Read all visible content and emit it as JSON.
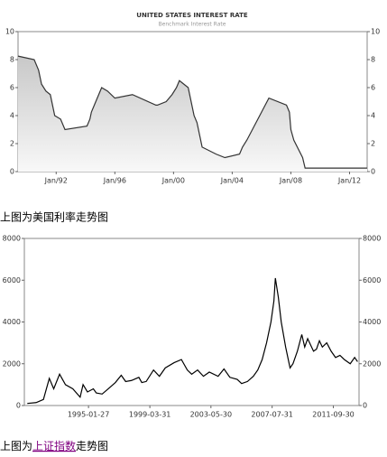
{
  "chart_data": [
    {
      "type": "area",
      "title": "UNITED STATES INTEREST RATE",
      "subtitle": "Benchmark Interest Rate",
      "color": "#333333",
      "x": [
        1989.4,
        1990.5,
        1990.8,
        1991.0,
        1991.3,
        1991.6,
        1991.9,
        1992.3,
        1992.6,
        1994.1,
        1994.3,
        1994.4,
        1994.6,
        1994.9,
        1995.1,
        1995.5,
        1996.0,
        1997.2,
        1998.8,
        1998.9,
        1999.5,
        1999.7,
        1999.9,
        2000.2,
        2000.4,
        2001.0,
        2001.2,
        2001.4,
        2001.6,
        2001.8,
        2001.95,
        2002.9,
        2003.5,
        2004.5,
        2004.7,
        2005.0,
        2005.5,
        2006.0,
        2006.5,
        2007.7,
        2007.9,
        2008.0,
        2008.2,
        2008.8,
        2008.97,
        2013.2
      ],
      "values": [
        8.25,
        8.0,
        7.25,
        6.25,
        5.75,
        5.5,
        4.0,
        3.75,
        3.0,
        3.25,
        3.75,
        4.25,
        4.75,
        5.5,
        6.0,
        5.75,
        5.25,
        5.5,
        4.75,
        4.75,
        5.0,
        5.25,
        5.5,
        6.0,
        6.5,
        6.0,
        5.0,
        4.0,
        3.5,
        2.5,
        1.75,
        1.25,
        1.0,
        1.25,
        1.75,
        2.25,
        3.25,
        4.25,
        5.25,
        4.75,
        4.25,
        3.0,
        2.25,
        1.0,
        0.25,
        0.25
      ],
      "xlim": [
        1989.4,
        2013.2
      ],
      "xticks": [
        {
          "value": 1992,
          "label": "Jan/92"
        },
        {
          "value": 1996,
          "label": "Jan/96"
        },
        {
          "value": 2000,
          "label": "Jan/00"
        },
        {
          "value": 2004,
          "label": "Jan/04"
        },
        {
          "value": 2008,
          "label": "Jan/08"
        },
        {
          "value": 2012,
          "label": "Jan/12"
        }
      ],
      "ylim": [
        0,
        10
      ],
      "yticks": [
        0,
        2,
        4,
        6,
        8,
        10
      ]
    },
    {
      "type": "line",
      "color": "#000000",
      "x": [
        1990.9,
        1991.5,
        1992.0,
        1992.4,
        1992.7,
        1993.1,
        1993.5,
        1994.0,
        1994.5,
        1994.7,
        1995.0,
        1995.4,
        1995.6,
        1996.0,
        1996.5,
        1996.9,
        1997.3,
        1997.6,
        1998.0,
        1998.5,
        1998.7,
        1999.0,
        1999.5,
        1999.9,
        2000.3,
        2000.9,
        2001.4,
        2001.8,
        2002.1,
        2002.5,
        2002.9,
        2003.3,
        2003.9,
        2004.3,
        2004.7,
        2005.2,
        2005.5,
        2005.9,
        2006.3,
        2006.6,
        2006.9,
        2007.2,
        2007.5,
        2007.7,
        2007.8,
        2008.0,
        2008.2,
        2008.5,
        2008.8,
        2009.0,
        2009.3,
        2009.6,
        2009.8,
        2010.0,
        2010.4,
        2010.6,
        2010.8,
        2011.0,
        2011.3,
        2011.6,
        2011.9,
        2012.2,
        2012.5,
        2012.9,
        2013.2,
        2013.4
      ],
      "values": [
        100,
        140,
        290,
        1300,
        800,
        1500,
        1000,
        800,
        400,
        1000,
        650,
        800,
        600,
        550,
        850,
        1100,
        1450,
        1150,
        1200,
        1350,
        1100,
        1150,
        1700,
        1400,
        1800,
        2050,
        2200,
        1700,
        1500,
        1700,
        1400,
        1600,
        1400,
        1750,
        1350,
        1250,
        1050,
        1150,
        1400,
        1700,
        2200,
        3000,
        4000,
        5000,
        6100,
        5200,
        4000,
        2800,
        1800,
        2000,
        2600,
        3400,
        2800,
        3200,
        2600,
        2700,
        3100,
        2800,
        3000,
        2600,
        2300,
        2400,
        2200,
        2000,
        2300,
        2100
      ],
      "xlim": [
        1990.7,
        2013.5
      ],
      "xticks": [
        {
          "value": 1995.07,
          "label": "1995-01-27"
        },
        {
          "value": 1999.25,
          "label": "1999-03-31"
        },
        {
          "value": 2003.41,
          "label": "2003-05-30"
        },
        {
          "value": 2007.58,
          "label": "2007-07-31"
        },
        {
          "value": 2011.75,
          "label": "2011-09-30"
        }
      ],
      "ylim": [
        0,
        8000
      ],
      "yticks": [
        0,
        2000,
        4000,
        6000,
        8000
      ]
    }
  ],
  "captions": [
    {
      "text": "上图为美国利率走势图"
    },
    {
      "before": "上图为",
      "link": "上证指数",
      "after": "走势图"
    }
  ]
}
